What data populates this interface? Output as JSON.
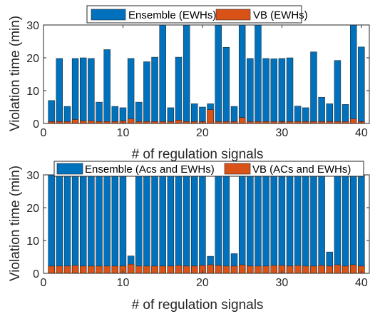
{
  "colors": {
    "ensemble": "#0072BD",
    "vb": "#D95319"
  },
  "chart_data": [
    {
      "type": "bar",
      "xlabel": "# of regulation signals",
      "ylabel": "Violation time (min)",
      "xlim": [
        0,
        41
      ],
      "ylim": [
        0,
        30
      ],
      "xticks": [
        "0",
        "10",
        "20",
        "30",
        "40"
      ],
      "yticks": [
        "0",
        "10",
        "20",
        "30"
      ],
      "legend_position": "top",
      "x": [
        1,
        2,
        3,
        4,
        5,
        6,
        7,
        8,
        9,
        10,
        11,
        12,
        13,
        14,
        15,
        16,
        17,
        18,
        19,
        20,
        21,
        22,
        23,
        24,
        25,
        26,
        27,
        28,
        29,
        30,
        31,
        32,
        33,
        34,
        35,
        36,
        37,
        38,
        39,
        40
      ],
      "series": [
        {
          "name": "Ensemble (EWHs)",
          "color": "#0072BD",
          "values": [
            7.0,
            19.8,
            5.2,
            19.8,
            20.0,
            19.8,
            6.5,
            22.5,
            5.2,
            4.8,
            19.8,
            6.5,
            18.8,
            20.2,
            30,
            4.8,
            20.2,
            30,
            6.0,
            5.0,
            6.0,
            30,
            23.2,
            5.2,
            30,
            19.8,
            30,
            19.8,
            19.7,
            19.8,
            20.0,
            5.3,
            4.8,
            21.8,
            8.0,
            6.0,
            19.2,
            5.8,
            30,
            23.3
          ]
        },
        {
          "name": "VB (EWHs)",
          "color": "#D95319",
          "values": [
            0.6,
            0.6,
            0.6,
            1.2,
            0.8,
            0.8,
            0.6,
            0.6,
            0.6,
            0.8,
            1.4,
            0.6,
            0.6,
            0.6,
            0.6,
            0.6,
            1.0,
            0.6,
            0.6,
            0.6,
            4.2,
            0.6,
            0.6,
            0.6,
            1.8,
            0.6,
            0.6,
            0.6,
            0.6,
            0.6,
            0.6,
            0.6,
            0.6,
            0.6,
            0.6,
            0.6,
            0.6,
            0.6,
            1.4,
            0.6
          ]
        }
      ]
    },
    {
      "type": "bar",
      "xlabel": "# of regulation signals",
      "ylabel": "Violation time (min)",
      "xlim": [
        0,
        41
      ],
      "ylim": [
        0,
        30
      ],
      "xticks": [
        "0",
        "10",
        "20",
        "30",
        "40"
      ],
      "yticks": [
        "0",
        "10",
        "20",
        "30"
      ],
      "legend_position": "top",
      "x": [
        1,
        2,
        3,
        4,
        5,
        6,
        7,
        8,
        9,
        10,
        11,
        12,
        13,
        14,
        15,
        16,
        17,
        18,
        19,
        20,
        21,
        22,
        23,
        24,
        25,
        26,
        27,
        28,
        29,
        30,
        31,
        32,
        33,
        34,
        35,
        36,
        37,
        38,
        39,
        40
      ],
      "series": [
        {
          "name": "Ensemble (Acs and EWHs)",
          "color": "#0072BD",
          "values": [
            30,
            30,
            30,
            30,
            30,
            30,
            30,
            30,
            30,
            30,
            5.3,
            30,
            30,
            30,
            30,
            30,
            30,
            30,
            30,
            30,
            5.2,
            30,
            30,
            6.0,
            30,
            30,
            30,
            30,
            30,
            30,
            30,
            30,
            30,
            30,
            30,
            6.5,
            30,
            30,
            30,
            30
          ]
        },
        {
          "name": "VB (ACs and EWHs)",
          "color": "#D95319",
          "values": [
            2.2,
            2.2,
            2.2,
            2.4,
            2.2,
            2.2,
            2.2,
            2.2,
            2.2,
            2.2,
            2.8,
            2.2,
            2.2,
            2.2,
            2.2,
            2.2,
            2.4,
            2.2,
            2.2,
            2.4,
            2.6,
            2.4,
            2.2,
            2.2,
            2.6,
            2.2,
            2.2,
            2.2,
            2.4,
            2.4,
            2.2,
            2.4,
            2.2,
            2.2,
            2.4,
            2.2,
            2.6,
            2.2,
            2.6,
            2.2
          ]
        }
      ]
    }
  ]
}
